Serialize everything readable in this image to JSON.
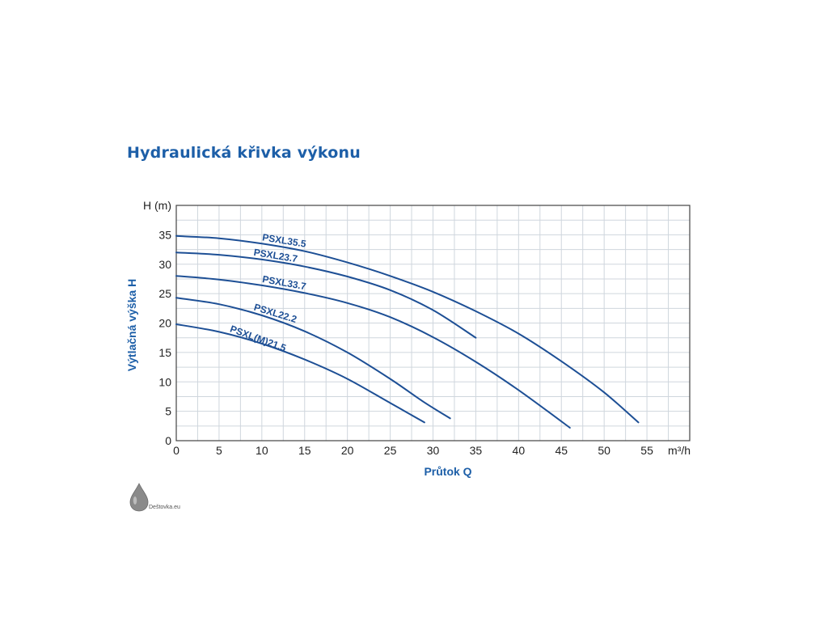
{
  "chart_data": {
    "type": "line",
    "title": "Hydraulická křivka výkonu",
    "xlabel": "Průtok Q",
    "ylabel": "Výtlačná výška H",
    "y_unit": "H (m)",
    "x_unit": "m³/h",
    "xlim": [
      0,
      60
    ],
    "ylim": [
      0,
      40
    ],
    "x_ticks": [
      "0",
      "5",
      "10",
      "15",
      "20",
      "25",
      "30",
      "35",
      "40",
      "45",
      "50",
      "55"
    ],
    "y_ticks": [
      "0",
      "5",
      "10",
      "15",
      "20",
      "25",
      "30",
      "35"
    ],
    "grid": true,
    "colors": {
      "curve": "#1d4f95",
      "title": "#1d5fa8",
      "grid": "#cfd6dd"
    },
    "series": [
      {
        "name": "PSXL35.5",
        "points": [
          [
            0,
            34.8
          ],
          [
            5,
            34.4
          ],
          [
            10,
            33.5
          ],
          [
            15,
            32.2
          ],
          [
            20,
            30.3
          ],
          [
            25,
            28
          ],
          [
            30,
            25.3
          ],
          [
            35,
            22
          ],
          [
            40,
            18.2
          ],
          [
            45,
            13.5
          ],
          [
            50,
            8.2
          ],
          [
            54,
            3.1
          ]
        ]
      },
      {
        "name": "PSXL23.7",
        "points": [
          [
            0,
            32
          ],
          [
            5,
            31.6
          ],
          [
            10,
            30.8
          ],
          [
            15,
            29.6
          ],
          [
            20,
            27.9
          ],
          [
            25,
            25.6
          ],
          [
            30,
            22.2
          ],
          [
            35,
            17.5
          ]
        ]
      },
      {
        "name": "PSXL33.7",
        "points": [
          [
            0,
            28
          ],
          [
            5,
            27.4
          ],
          [
            10,
            26.4
          ],
          [
            15,
            25.1
          ],
          [
            20,
            23.4
          ],
          [
            25,
            21
          ],
          [
            30,
            17.6
          ],
          [
            35,
            13.4
          ],
          [
            40,
            8.6
          ],
          [
            46,
            2.2
          ]
        ]
      },
      {
        "name": "PSXL22.2",
        "points": [
          [
            0,
            24.3
          ],
          [
            5,
            23.2
          ],
          [
            10,
            21.3
          ],
          [
            15,
            18.6
          ],
          [
            20,
            15
          ],
          [
            25,
            10.5
          ],
          [
            29,
            6.5
          ],
          [
            32,
            3.8
          ]
        ]
      },
      {
        "name": "PSXL(M)21.5",
        "points": [
          [
            0,
            19.8
          ],
          [
            5,
            18.5
          ],
          [
            10,
            16.5
          ],
          [
            15,
            13.8
          ],
          [
            20,
            10.5
          ],
          [
            25,
            6.4
          ],
          [
            29,
            3.1
          ]
        ]
      }
    ]
  },
  "watermark": {
    "text": "Deštovka.eu",
    "icon": "drop-icon"
  }
}
